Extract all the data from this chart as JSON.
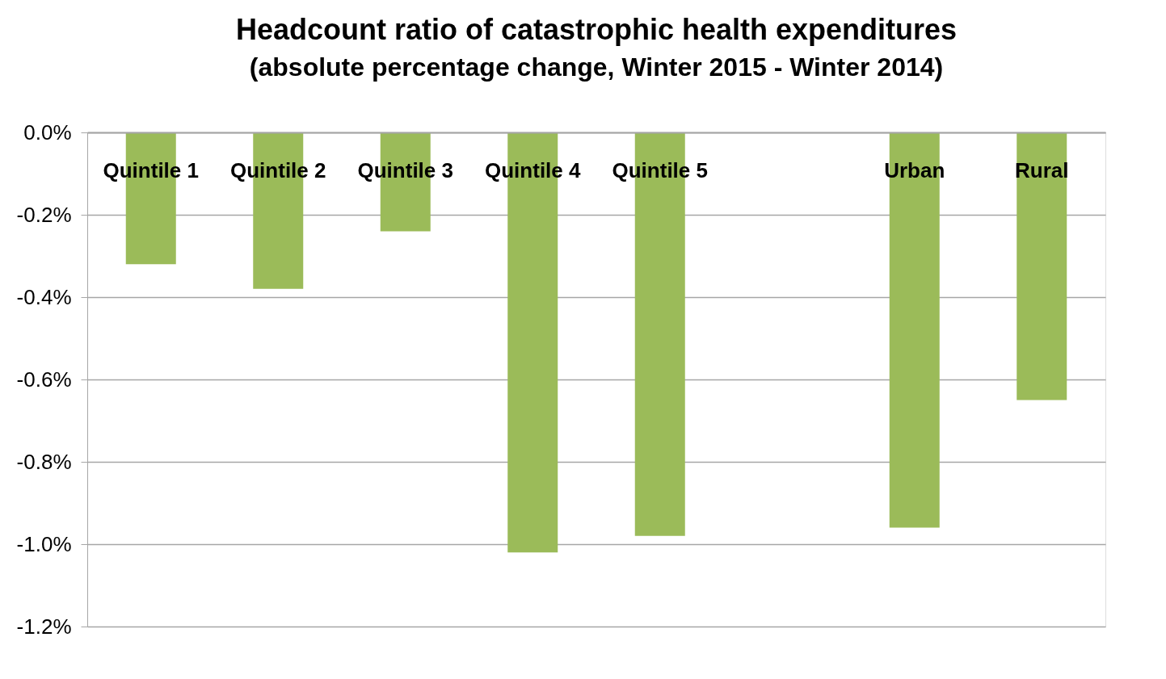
{
  "chart_data": {
    "type": "bar",
    "title": "Headcount ratio of catastrophic health expenditures",
    "subtitle": "(absolute percentage change, Winter 2015 - Winter 2014)",
    "categories": [
      "Quintile 1",
      "Quintile 2",
      "Quintile 3",
      "Quintile 4",
      "Quintile 5",
      null,
      "Urban",
      "Rural"
    ],
    "values": [
      -0.32,
      -0.38,
      -0.24,
      -1.02,
      -0.98,
      null,
      -0.96,
      -0.65
    ],
    "color": "#9bbb59",
    "ylim": [
      -1.2,
      0
    ],
    "yticks": [
      {
        "value": 0,
        "label": "0.0%"
      },
      {
        "value": -0.2,
        "label": "-0.2%"
      },
      {
        "value": -0.4,
        "label": "-0.4%"
      },
      {
        "value": -0.6,
        "label": "-0.6%"
      },
      {
        "value": -0.8,
        "label": "-0.8%"
      },
      {
        "value": -1.0,
        "label": "-1.0%"
      },
      {
        "value": -1.2,
        "label": "-1.2%"
      }
    ],
    "grid": "y",
    "legend": false
  }
}
